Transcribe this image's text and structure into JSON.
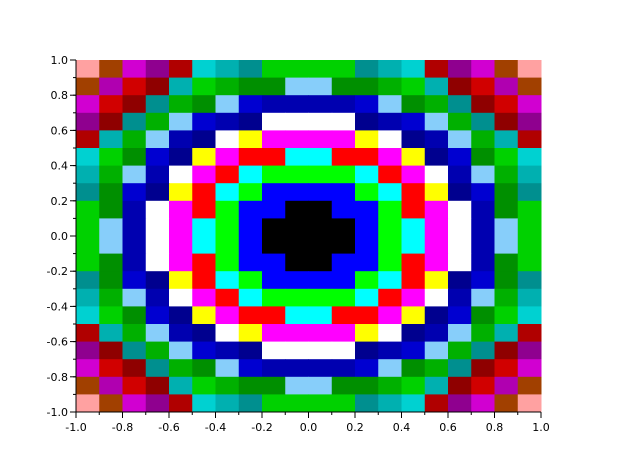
{
  "chart_data": {
    "type": "heatmap",
    "title": "",
    "xlabel": "",
    "ylabel": "",
    "xlim": [
      -1.0,
      1.0
    ],
    "ylim": [
      -1.0,
      1.0
    ],
    "grid": false,
    "x_ticks": [
      "-1.0",
      "-0.8",
      "-0.6",
      "-0.4",
      "-0.2",
      "0.0",
      "0.2",
      "0.4",
      "0.6",
      "0.8",
      "1.0"
    ],
    "y_ticks": [
      "-1.0",
      "-0.8",
      "-0.6",
      "-0.4",
      "-0.2",
      "0.0",
      "0.2",
      "0.4",
      "0.6",
      "0.8",
      "1.0"
    ],
    "x_tick_values": [
      -1.0,
      -0.8,
      -0.6,
      -0.4,
      -0.2,
      0.0,
      0.2,
      0.4,
      0.6,
      0.8,
      1.0
    ],
    "y_tick_values": [
      -1.0,
      -0.8,
      -0.6,
      -0.4,
      -0.2,
      0.0,
      0.2,
      0.4,
      0.6,
      0.8,
      1.0
    ],
    "minor_tick_step": 0.1,
    "colormap": {
      "1": "#000000",
      "2": "#0000ff",
      "3": "#00ff00",
      "4": "#00ffff",
      "5": "#ff0000",
      "6": "#ff00ff",
      "7": "#ffff00",
      "8": "#ffffff",
      "9": "#00008f",
      "10": "#0000b0",
      "11": "#0000d1",
      "12": "#87cefa",
      "13": "#008f00",
      "14": "#00b000",
      "15": "#00d100",
      "16": "#008f8f",
      "17": "#00b0b0",
      "18": "#00d1d1",
      "19": "#8f0000",
      "20": "#b00000",
      "21": "#d10000",
      "22": "#8f008f",
      "23": "#b000b0",
      "24": "#d100d1",
      "26": "#a14000",
      "29": "#ffa1a1"
    },
    "values_note_rows": "top-to-bottom",
    "values": [
      [
        29,
        26,
        24,
        22,
        20,
        18,
        17,
        16,
        15,
        15,
        15,
        15,
        16,
        17,
        18,
        20,
        22,
        24,
        26,
        29
      ],
      [
        26,
        23,
        21,
        19,
        17,
        15,
        14,
        13,
        13,
        12,
        12,
        13,
        13,
        14,
        15,
        17,
        19,
        21,
        23,
        26
      ],
      [
        24,
        21,
        19,
        16,
        14,
        13,
        12,
        11,
        10,
        10,
        10,
        10,
        11,
        12,
        13,
        14,
        16,
        19,
        21,
        24
      ],
      [
        22,
        19,
        16,
        14,
        12,
        11,
        10,
        9,
        8,
        8,
        8,
        8,
        9,
        10,
        11,
        12,
        14,
        16,
        19,
        22
      ],
      [
        20,
        17,
        14,
        12,
        10,
        9,
        8,
        7,
        6,
        6,
        6,
        6,
        7,
        8,
        9,
        10,
        12,
        14,
        17,
        20
      ],
      [
        18,
        15,
        13,
        11,
        9,
        7,
        6,
        5,
        5,
        4,
        4,
        5,
        5,
        6,
        7,
        9,
        11,
        13,
        15,
        18
      ],
      [
        17,
        14,
        12,
        10,
        8,
        6,
        5,
        4,
        3,
        3,
        3,
        3,
        4,
        5,
        6,
        8,
        10,
        12,
        14,
        17
      ],
      [
        16,
        13,
        11,
        9,
        7,
        5,
        4,
        3,
        2,
        2,
        2,
        2,
        3,
        4,
        5,
        7,
        9,
        11,
        13,
        16
      ],
      [
        15,
        13,
        10,
        8,
        6,
        5,
        3,
        2,
        2,
        1,
        1,
        2,
        2,
        3,
        5,
        6,
        8,
        10,
        13,
        15
      ],
      [
        15,
        12,
        10,
        8,
        6,
        4,
        3,
        2,
        1,
        1,
        1,
        1,
        2,
        3,
        4,
        6,
        8,
        10,
        12,
        15
      ],
      [
        15,
        12,
        10,
        8,
        6,
        4,
        3,
        2,
        1,
        1,
        1,
        1,
        2,
        3,
        4,
        6,
        8,
        10,
        12,
        15
      ],
      [
        15,
        13,
        10,
        8,
        6,
        5,
        3,
        2,
        2,
        1,
        1,
        2,
        2,
        3,
        5,
        6,
        8,
        10,
        13,
        15
      ],
      [
        16,
        13,
        11,
        9,
        7,
        5,
        4,
        3,
        2,
        2,
        2,
        2,
        3,
        4,
        5,
        7,
        9,
        11,
        13,
        16
      ],
      [
        17,
        14,
        12,
        10,
        8,
        6,
        5,
        4,
        3,
        3,
        3,
        3,
        4,
        5,
        6,
        8,
        10,
        12,
        14,
        17
      ],
      [
        18,
        15,
        13,
        11,
        9,
        7,
        6,
        5,
        5,
        4,
        4,
        5,
        5,
        6,
        7,
        9,
        11,
        13,
        15,
        18
      ],
      [
        20,
        17,
        14,
        12,
        10,
        9,
        8,
        7,
        6,
        6,
        6,
        6,
        7,
        8,
        9,
        10,
        12,
        14,
        17,
        20
      ],
      [
        22,
        19,
        16,
        14,
        12,
        11,
        10,
        9,
        8,
        8,
        8,
        8,
        9,
        10,
        11,
        12,
        14,
        16,
        19,
        22
      ],
      [
        24,
        21,
        19,
        16,
        14,
        13,
        12,
        11,
        10,
        10,
        10,
        10,
        11,
        12,
        13,
        14,
        16,
        19,
        21,
        24
      ],
      [
        26,
        23,
        21,
        19,
        17,
        15,
        14,
        13,
        13,
        12,
        12,
        13,
        13,
        14,
        15,
        17,
        19,
        21,
        23,
        26
      ],
      [
        29,
        26,
        24,
        22,
        20,
        18,
        17,
        16,
        15,
        15,
        15,
        15,
        16,
        17,
        18,
        20,
        22,
        24,
        26,
        29
      ]
    ]
  }
}
